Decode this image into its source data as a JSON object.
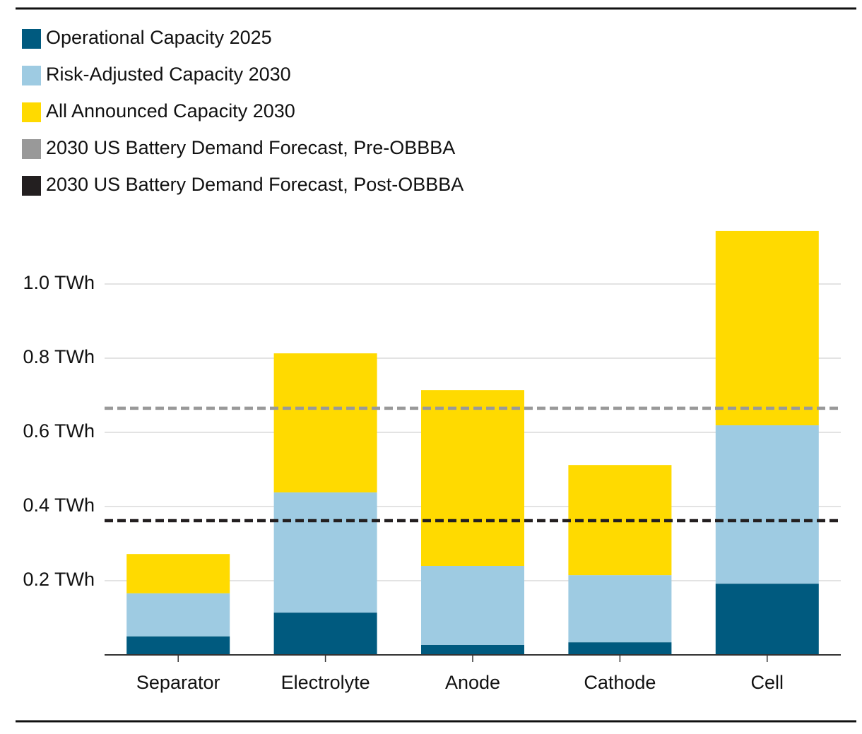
{
  "chart_data": {
    "type": "stacked_bar",
    "categories": [
      "Separator",
      "Electrolyte",
      "Anode",
      "Cathode",
      "Cell"
    ],
    "series": [
      {
        "name": "Operational Capacity 2025",
        "color": "#005a7f",
        "values": [
          0.05,
          0.114,
          0.027,
          0.034,
          0.192
        ]
      },
      {
        "name": "Risk-Adjusted Capacity 2030",
        "color": "#9ecbe2",
        "values": [
          0.116,
          0.324,
          0.213,
          0.181,
          0.427
        ]
      },
      {
        "name": "All Announced Capacity 2030",
        "color": "#ffda00",
        "values": [
          0.106,
          0.375,
          0.474,
          0.297,
          0.524
        ]
      }
    ],
    "reference_lines": [
      {
        "name": "2030 US Battery Demand Forecast, Pre-OBBBA",
        "color": "#999999",
        "value": 0.665
      },
      {
        "name": "2030 US Battery Demand Forecast, Post-OBBBA",
        "color": "#231f20",
        "value": 0.362
      }
    ],
    "ylim": [
      0,
      1.2
    ],
    "yticks": [
      {
        "value": 0.2,
        "label": "0.2 TWh"
      },
      {
        "value": 0.4,
        "label": "0.4 TWh"
      },
      {
        "value": 0.6,
        "label": "0.6 TWh"
      },
      {
        "value": 0.8,
        "label": "0.8 TWh"
      },
      {
        "value": 1.0,
        "label": "1.0 TWh"
      }
    ],
    "grid": true
  }
}
